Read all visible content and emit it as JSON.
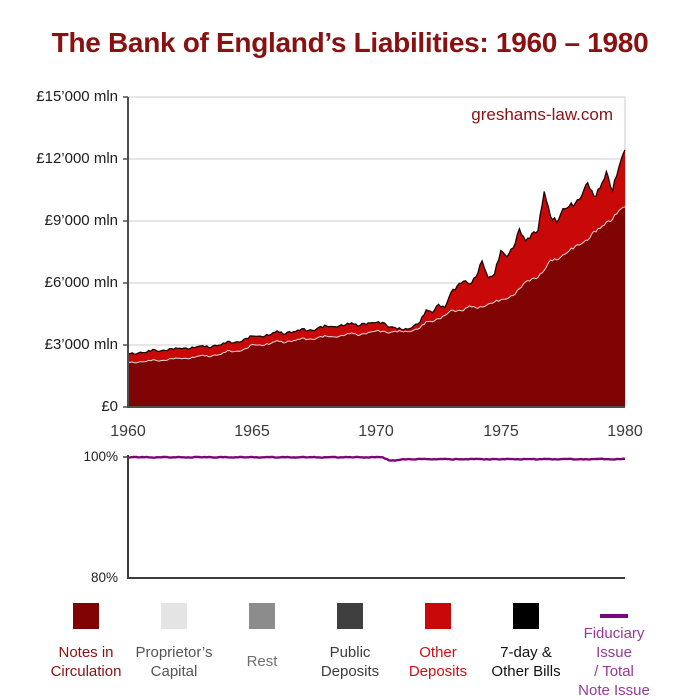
{
  "title": "The Bank of England’s Liabilities: 1960 – 1980",
  "watermark": "greshams-law.com",
  "colors": {
    "title": "#8a1111",
    "notes_area": "#800404",
    "other_area": "#c90808",
    "notes_edge": "#e0dcdc",
    "other_edge": "#1c0505",
    "fiduciary_line": "#7b067b",
    "axis": "#4d4d4d",
    "grid": "#cdcdcd"
  },
  "charts": {
    "upper": {
      "yticks": [
        {
          "label": "£15’000 mln",
          "value": 15000
        },
        {
          "label": "£12’000 mln",
          "value": 12000
        },
        {
          "label": "£9’000 mln",
          "value": 9000
        },
        {
          "label": "£6’000 mln",
          "value": 6000
        },
        {
          "label": "£3’000 mln",
          "value": 3000
        },
        {
          "label": "£0",
          "value": 0
        }
      ],
      "xticks": [
        {
          "label": "1960"
        },
        {
          "label": "1965"
        },
        {
          "label": "1970"
        },
        {
          "label": "1975"
        },
        {
          "label": "1980"
        }
      ]
    },
    "lower": {
      "yticks": [
        {
          "label": "100%",
          "value": 100
        },
        {
          "label": "80%",
          "value": 80
        }
      ]
    }
  },
  "legend": {
    "items": [
      {
        "label": "Notes in\nCirculation",
        "color": "#800404",
        "text_color": "#8a1111",
        "swatch": "square"
      },
      {
        "label": "Proprietor’s\nCapital",
        "color": "#e4e4e4",
        "text_color": "#555555",
        "swatch": "square"
      },
      {
        "label": "Rest",
        "color": "#8c8c8c",
        "text_color": "#6e6e6e",
        "swatch": "square"
      },
      {
        "label": "Public\nDeposits",
        "color": "#3f3f3f",
        "text_color": "#3d3d3d",
        "swatch": "square"
      },
      {
        "label": "Other\nDeposits",
        "color": "#c90808",
        "text_color": "#cc1111",
        "swatch": "square"
      },
      {
        "label": "7-day &\nOther Bills",
        "color": "#000000",
        "text_color": "#111111",
        "swatch": "square"
      },
      {
        "label": "Fiduciary Issue\n/ Total\nNote Issue",
        "color": "#7b067b",
        "text_color": "#963a96",
        "swatch": "line"
      }
    ]
  },
  "chart_data": [
    {
      "type": "area",
      "stacked": true,
      "title": "The Bank of England’s Liabilities: 1960 – 1980",
      "xlabel": "",
      "ylabel": "£ mln",
      "xlim": [
        1960,
        1980
      ],
      "ylim": [
        0,
        15000
      ],
      "x_start": 1960,
      "x_step": 0.25,
      "grid": "horizontal",
      "legend_position": "bottom",
      "note": "values in £ millions; second series values are cumulative stack tops (Notes + Other Deposits); other legend components (Proprietor's Capital, Rest, Public Deposits, 7-day & Other Bills) are negligibly small in the plot",
      "series": [
        {
          "name": "Notes in Circulation",
          "color": "#800404",
          "edge_color": "#e0dcdc",
          "values": [
            2180,
            2150,
            2170,
            2230,
            2270,
            2230,
            2260,
            2330,
            2380,
            2330,
            2360,
            2430,
            2500,
            2450,
            2490,
            2570,
            2720,
            2670,
            2710,
            2800,
            3050,
            2980,
            3010,
            3080,
            3200,
            3130,
            3160,
            3240,
            3330,
            3260,
            3290,
            3380,
            3450,
            3380,
            3410,
            3510,
            3560,
            3490,
            3530,
            3630,
            3700,
            3640,
            3600,
            3640,
            3680,
            3640,
            3700,
            3850,
            4100,
            4150,
            4260,
            4420,
            4700,
            4620,
            4700,
            4870,
            4800,
            4850,
            4950,
            5120,
            5150,
            5250,
            5400,
            5700,
            6100,
            6150,
            6300,
            6600,
            7100,
            7150,
            7300,
            7600,
            7750,
            7900,
            8100,
            8450,
            8700,
            8900,
            9100,
            9500,
            9680
          ]
        },
        {
          "name": "Other Deposits",
          "color": "#c90808",
          "edge_color": "#1c0505",
          "stack_top_values": [
            2610,
            2580,
            2620,
            2680,
            2760,
            2700,
            2740,
            2800,
            2870,
            2820,
            2850,
            2900,
            2950,
            2900,
            2950,
            3040,
            3150,
            3100,
            3160,
            3280,
            3480,
            3400,
            3440,
            3520,
            3650,
            3560,
            3600,
            3680,
            3780,
            3680,
            3730,
            3850,
            3950,
            3870,
            3920,
            4000,
            4030,
            3960,
            4010,
            4080,
            4110,
            4060,
            3900,
            3800,
            3780,
            3770,
            3900,
            4150,
            4650,
            4600,
            4950,
            4800,
            5600,
            5800,
            6150,
            5900,
            6300,
            7100,
            6200,
            6500,
            7500,
            7300,
            7700,
            8570,
            8100,
            8300,
            8600,
            10400,
            9200,
            9000,
            9500,
            9800,
            9800,
            10200,
            10900,
            10100,
            10700,
            11300,
            10500,
            11600,
            12440
          ]
        }
      ]
    },
    {
      "type": "line",
      "title": "Fiduciary Issue / Total Note Issue",
      "xlim": [
        1960,
        1980
      ],
      "ylim": [
        80,
        100
      ],
      "x_start": 1960,
      "x_step": 0.25,
      "unit": "%",
      "series": [
        {
          "name": "Fiduciary Issue / Total Note Issue",
          "color": "#7b067b",
          "values": [
            99.9,
            100,
            99.95,
            100,
            99.9,
            99.95,
            100,
            99.9,
            100,
            99.95,
            99.9,
            100,
            99.95,
            100,
            99.9,
            100,
            99.95,
            99.9,
            100,
            99.95,
            100,
            99.9,
            99.95,
            100,
            99.9,
            100,
            99.95,
            99.9,
            100,
            99.95,
            100,
            99.9,
            99.95,
            100,
            99.9,
            100,
            99.95,
            100,
            99.9,
            99.95,
            100,
            99.95,
            99.45,
            99.4,
            99.6,
            99.65,
            99.6,
            99.7,
            99.65,
            99.6,
            99.65,
            99.7,
            99.6,
            99.65,
            99.6,
            99.65,
            99.7,
            99.65,
            99.6,
            99.65,
            99.6,
            99.7,
            99.65,
            99.6,
            99.65,
            99.65,
            99.6,
            99.7,
            99.65,
            99.6,
            99.65,
            99.7,
            99.6,
            99.65,
            99.6,
            99.65,
            99.7,
            99.65,
            99.6,
            99.65,
            99.7
          ]
        }
      ]
    }
  ]
}
